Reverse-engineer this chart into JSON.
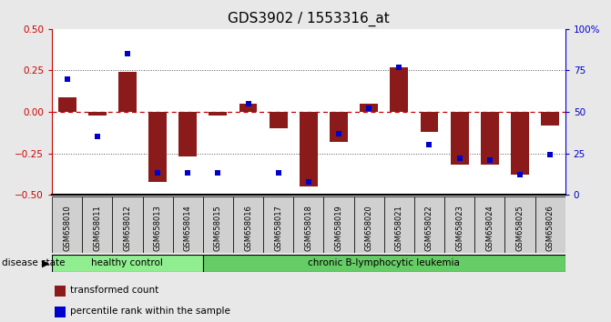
{
  "title": "GDS3902 / 1553316_at",
  "samples": [
    "GSM658010",
    "GSM658011",
    "GSM658012",
    "GSM658013",
    "GSM658014",
    "GSM658015",
    "GSM658016",
    "GSM658017",
    "GSM658018",
    "GSM658019",
    "GSM658020",
    "GSM658021",
    "GSM658022",
    "GSM658023",
    "GSM658024",
    "GSM658025",
    "GSM658026"
  ],
  "transformed_count": [
    0.09,
    -0.02,
    0.24,
    -0.42,
    -0.27,
    -0.02,
    0.05,
    -0.1,
    -0.45,
    -0.18,
    0.05,
    0.27,
    -0.12,
    -0.32,
    -0.32,
    -0.38,
    -0.08
  ],
  "percentile_rank": [
    70,
    35,
    85,
    13,
    13,
    13,
    55,
    13,
    8,
    37,
    52,
    77,
    30,
    22,
    21,
    12,
    24
  ],
  "healthy_control_count": 5,
  "group_label_healthy": "healthy control",
  "group_label_leukemia": "chronic B-lymphocytic leukemia",
  "bar_color_red": "#8B1A1A",
  "bar_color_blue": "#0000CC",
  "left_ylim": [
    -0.5,
    0.5
  ],
  "right_ylim": [
    0,
    100
  ],
  "left_yticks": [
    -0.5,
    -0.25,
    0.0,
    0.25,
    0.5
  ],
  "right_yticks": [
    0,
    25,
    50,
    75,
    100
  ],
  "bg_color": "#e8e8e8",
  "plot_bg_color": "#ffffff",
  "tick_bg_color": "#d0d0d0",
  "hline_zero_color": "#cc0000",
  "dotted_line_color": "#555555",
  "healthy_green": "#90ee90",
  "leukemia_green": "#66cc66",
  "legend_tc_label": "transformed count",
  "legend_pr_label": "percentile rank within the sample",
  "left_axis_color": "#cc0000",
  "right_axis_color": "#0000cc",
  "title_fontsize": 11
}
